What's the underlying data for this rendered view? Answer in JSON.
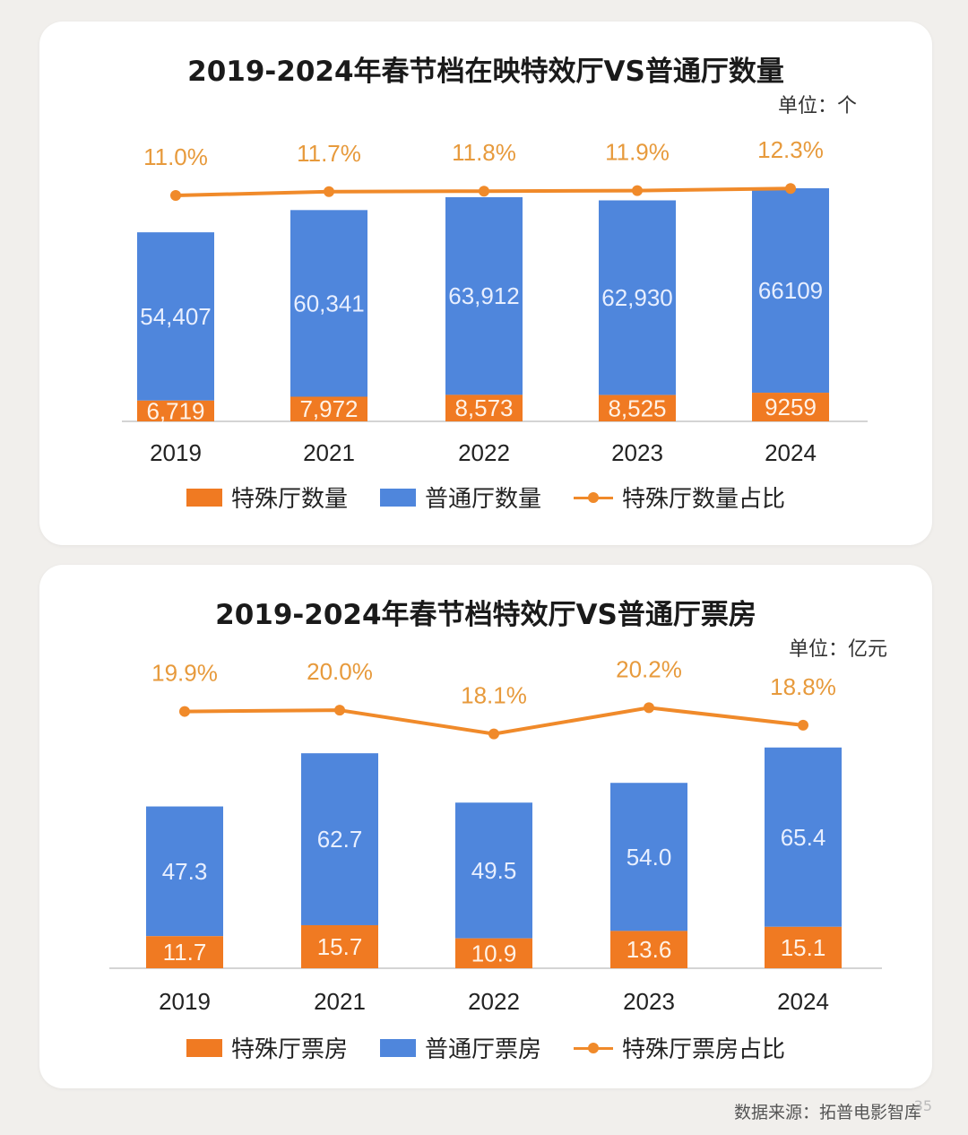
{
  "chart_data": [
    {
      "type": "bar",
      "title": "2019-2024年春节档在映特效厅VS普通厅数量",
      "unit": "单位：个",
      "categories": [
        "2019",
        "2021",
        "2022",
        "2023",
        "2024"
      ],
      "series": [
        {
          "name": "特殊厅数量",
          "values": [
            6719,
            7972,
            8573,
            8525,
            9259
          ],
          "labels": [
            "6,719",
            "7,972",
            "8,573",
            "8,525",
            "9259"
          ],
          "color": "#f07a22"
        },
        {
          "name": "普通厅数量",
          "values": [
            54407,
            60341,
            63912,
            62930,
            66109
          ],
          "labels": [
            "54,407",
            "60,341",
            "63,912",
            "62,930",
            "66109"
          ],
          "color": "#4f86dc"
        }
      ],
      "line": {
        "name": "特殊厅数量占比",
        "values": [
          11.0,
          11.7,
          11.8,
          11.9,
          12.3
        ],
        "labels": [
          "11.0%",
          "11.7%",
          "11.8%",
          "11.9%",
          "12.3%"
        ],
        "color": "#f08a2a"
      },
      "stacked": true,
      "ylim": [
        0,
        80000
      ],
      "legend": "bottom"
    },
    {
      "type": "bar",
      "title": "2019-2024年春节档特效厅VS普通厅票房",
      "unit": "单位：亿元",
      "categories": [
        "2019",
        "2021",
        "2022",
        "2023",
        "2024"
      ],
      "series": [
        {
          "name": "特殊厅票房",
          "values": [
            11.7,
            15.7,
            10.9,
            13.6,
            15.1
          ],
          "labels": [
            "11.7",
            "15.7",
            "10.9",
            "13.6",
            "15.1"
          ],
          "color": "#f07a22"
        },
        {
          "name": "普通厅票房",
          "values": [
            47.3,
            62.7,
            49.5,
            54.0,
            65.4
          ],
          "labels": [
            "47.3",
            "62.7",
            "49.5",
            "54.0",
            "65.4"
          ],
          "color": "#4f86dc"
        }
      ],
      "line": {
        "name": "特殊厅票房占比",
        "values": [
          19.9,
          20.0,
          18.1,
          20.2,
          18.8
        ],
        "labels": [
          "19.9%",
          "20.0%",
          "18.1%",
          "20.2%",
          "18.8%"
        ],
        "color": "#f08a2a"
      },
      "stacked": true,
      "ylim": [
        0,
        85
      ],
      "legend": "bottom"
    }
  ],
  "footer": {
    "source": "数据来源：拓普电影智库",
    "page": "35"
  }
}
